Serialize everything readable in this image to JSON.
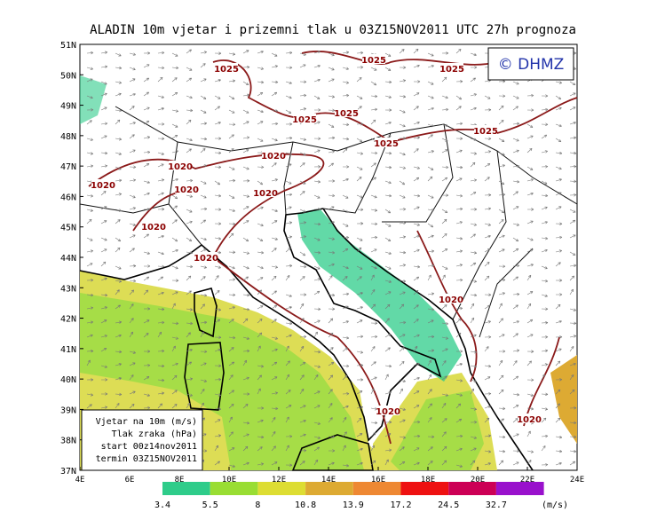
{
  "header": {
    "title": "ALADIN 10m vjetar i prizemni tlak u 03Z15NOV2011 UTC 27h prognoza",
    "copyright": "© DHMZ"
  },
  "axes": {
    "latitudes": [
      "51N",
      "50N",
      "49N",
      "48N",
      "47N",
      "46N",
      "45N",
      "44N",
      "43N",
      "42N",
      "41N",
      "40N",
      "39N",
      "38N",
      "37N"
    ],
    "longitudes": [
      "4E",
      "6E",
      "8E",
      "10E",
      "12E",
      "14E",
      "16E",
      "18E",
      "20E",
      "22E",
      "24E"
    ]
  },
  "isobar_labels": [
    "1025",
    "1025",
    "1025",
    "1025",
    "1025",
    "1025",
    "1025",
    "1020",
    "1020",
    "1020",
    "1020",
    "1020",
    "1020",
    "1020",
    "1020",
    "1020",
    "1020"
  ],
  "info_box": [
    "Vjetar na 10m (m/s)",
    "Tlak zraka (hPa)",
    "start 00z14nov2011",
    "termin 03Z15NOV2011"
  ],
  "legend": {
    "labels": [
      3.4,
      5.5,
      8,
      10.8,
      13.9,
      17.2,
      24.5,
      32.7
    ],
    "unit": "(m/s)",
    "colors": [
      "#2ecc8a",
      "#99dd33",
      "#dddd33",
      "#ddaa33",
      "#ee8833",
      "#ee1111",
      "#cc0055",
      "#9911cc"
    ]
  }
}
